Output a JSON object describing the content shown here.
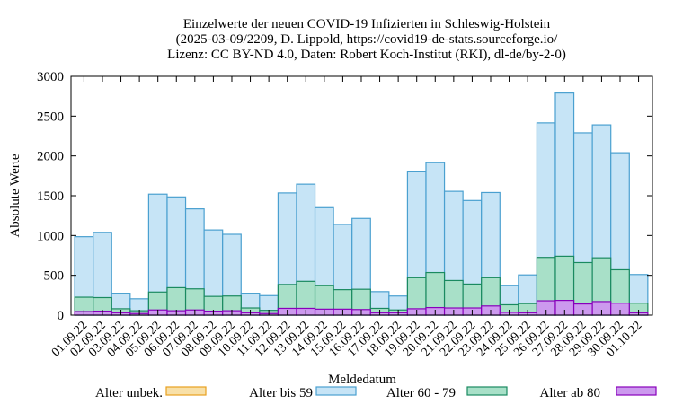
{
  "chart_data": {
    "type": "bar",
    "stacked": true,
    "title_lines": [
      "Einzelwerte der neuen COVID-19 Infizierten in Schleswig-Holstein",
      "(2025-03-09/2209, D. Lippold, https://covid19-de-stats.sourceforge.io/",
      "Lizenz: CC BY-ND 4.0, Daten: Robert Koch-Institut (RKI), dl-de/by-2-0)"
    ],
    "xlabel": "Meldedatum",
    "ylabel": "Absolute Werte",
    "ylim": [
      0,
      3000
    ],
    "yticks": [
      0,
      500,
      1000,
      1500,
      2000,
      2500,
      3000
    ],
    "grid": false,
    "legend_position": "bottom",
    "categories": [
      "01.09.22",
      "02.09.22",
      "03.09.22",
      "04.09.22",
      "05.09.22",
      "06.09.22",
      "07.09.22",
      "08.09.22",
      "09.09.22",
      "10.09.22",
      "11.09.22",
      "12.09.22",
      "13.09.22",
      "14.09.22",
      "15.09.22",
      "16.09.22",
      "17.09.22",
      "18.09.22",
      "19.09.22",
      "20.09.22",
      "21.09.22",
      "22.09.22",
      "23.09.22",
      "24.09.22",
      "25.09.22",
      "26.09.22",
      "27.09.22",
      "28.09.22",
      "29.09.22",
      "30.09.22",
      "01.10.22"
    ],
    "series": [
      {
        "name": "Alter ab 80",
        "color": "#cc99ee",
        "edge": "#8800bb",
        "values": [
          45,
          50,
          30,
          20,
          65,
          55,
          65,
          50,
          55,
          30,
          20,
          85,
          85,
          75,
          75,
          70,
          30,
          30,
          80,
          95,
          90,
          90,
          115,
          35,
          30,
          180,
          185,
          140,
          170,
          150,
          30
        ]
      },
      {
        "name": "Alter 60 - 79",
        "color": "#a8e0c8",
        "edge": "#1a8a60",
        "values": [
          180,
          170,
          50,
          35,
          225,
          290,
          265,
          185,
          185,
          60,
          40,
          300,
          340,
          295,
          245,
          255,
          55,
          35,
          390,
          440,
          345,
          300,
          355,
          95,
          115,
          545,
          555,
          520,
          550,
          420,
          120
        ]
      },
      {
        "name": "Alter bis 59",
        "color": "#c6e4f6",
        "edge": "#4aa0d0",
        "values": [
          760,
          820,
          195,
          150,
          1230,
          1140,
          1005,
          835,
          775,
          185,
          185,
          1150,
          1220,
          980,
          820,
          890,
          210,
          175,
          1330,
          1380,
          1120,
          1050,
          1070,
          240,
          360,
          1690,
          2050,
          1630,
          1670,
          1470,
          360
        ]
      },
      {
        "name": "Alter unbek.",
        "color": "#f8e0a8",
        "edge": "#e8a020",
        "values": [
          0,
          0,
          0,
          0,
          0,
          0,
          0,
          0,
          0,
          0,
          0,
          0,
          0,
          0,
          0,
          0,
          0,
          0,
          0,
          0,
          0,
          0,
          0,
          0,
          0,
          0,
          0,
          0,
          0,
          0,
          0
        ]
      }
    ],
    "legend_order": [
      "Alter unbek.",
      "Alter bis 59",
      "Alter 60 - 79",
      "Alter ab 80"
    ]
  }
}
